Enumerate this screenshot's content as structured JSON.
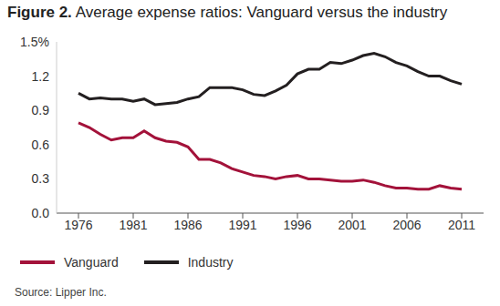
{
  "chart_data": {
    "type": "line",
    "title": "Figure 2. Average expense ratios: Vanguard versus the industry",
    "source": "Source: Lipper Inc.",
    "x": [
      1976,
      1977,
      1978,
      1979,
      1980,
      1981,
      1982,
      1983,
      1984,
      1985,
      1986,
      1987,
      1988,
      1989,
      1990,
      1991,
      1992,
      1993,
      1994,
      1995,
      1996,
      1997,
      1998,
      1999,
      2000,
      2001,
      2002,
      2003,
      2004,
      2005,
      2006,
      2007,
      2008,
      2009,
      2010,
      2011
    ],
    "series": [
      {
        "name": "Vanguard",
        "color": "#a3123a",
        "values": [
          0.79,
          0.75,
          0.69,
          0.64,
          0.66,
          0.66,
          0.72,
          0.66,
          0.63,
          0.62,
          0.58,
          0.47,
          0.47,
          0.44,
          0.39,
          0.36,
          0.33,
          0.32,
          0.3,
          0.32,
          0.33,
          0.3,
          0.3,
          0.29,
          0.28,
          0.28,
          0.29,
          0.27,
          0.24,
          0.22,
          0.22,
          0.21,
          0.21,
          0.24,
          0.22,
          0.21
        ]
      },
      {
        "name": "Industry",
        "color": "#231f20",
        "values": [
          1.05,
          1.0,
          1.01,
          1.0,
          1.0,
          0.98,
          1.0,
          0.95,
          0.96,
          0.97,
          1.0,
          1.02,
          1.1,
          1.1,
          1.1,
          1.08,
          1.04,
          1.03,
          1.07,
          1.12,
          1.22,
          1.26,
          1.26,
          1.32,
          1.31,
          1.34,
          1.38,
          1.4,
          1.37,
          1.32,
          1.29,
          1.24,
          1.2,
          1.2,
          1.16,
          1.13
        ]
      }
    ],
    "xlim": [
      1974,
      2013
    ],
    "xticks": [
      1976,
      1981,
      1986,
      1991,
      1996,
      2001,
      2006,
      2011
    ],
    "ylim": [
      0,
      1.5
    ],
    "yticks": [
      {
        "value": 0,
        "label": "0.0"
      },
      0.3,
      0.6,
      0.9,
      1.2,
      {
        "value": 1.5,
        "label": "1.5%"
      }
    ],
    "grid": false,
    "legend": "bottom"
  }
}
